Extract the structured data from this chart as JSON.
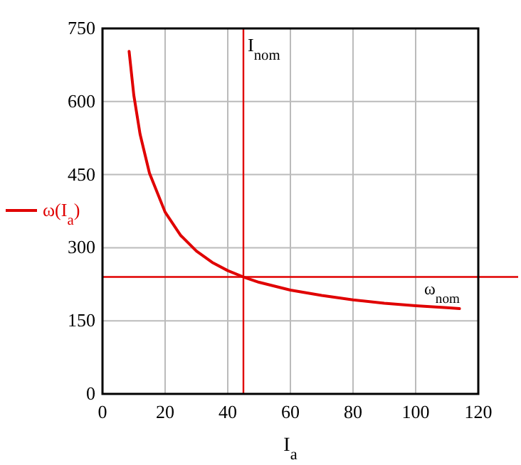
{
  "chart_data": {
    "type": "line",
    "xlabel": "I$_{a}$",
    "xlim": [
      0,
      120
    ],
    "xticks": [
      0,
      20,
      40,
      60,
      80,
      100,
      120
    ],
    "ylim": [
      0,
      750
    ],
    "yticks": [
      0,
      150,
      300,
      450,
      600,
      750
    ],
    "grid": true,
    "legend": "left",
    "line_style": "solid",
    "marker": "none",
    "x": [
      8.5,
      10,
      12,
      15,
      20,
      25,
      30,
      35,
      40,
      45,
      50,
      60,
      70,
      80,
      90,
      100,
      110,
      114
    ],
    "series": [
      {
        "name": "ω(I$_{a}$)",
        "color": "#e00000",
        "values": [
          703,
          613,
          533,
          453,
          373,
          325,
          293,
          270,
          253,
          240,
          229,
          213,
          202,
          193,
          186,
          181,
          177,
          175
        ]
      }
    ],
    "ref_lines": [
      {
        "axis": "x",
        "value": 45,
        "label": "I$_{nom}$",
        "color": "#e00000"
      },
      {
        "axis": "y",
        "value": 240,
        "label": "ω$_{nom}$",
        "color": "#e00000"
      }
    ]
  }
}
